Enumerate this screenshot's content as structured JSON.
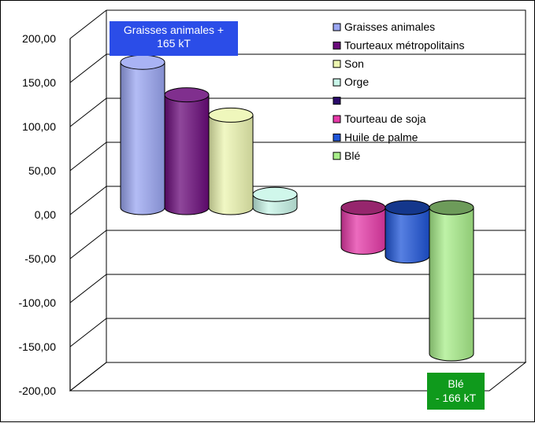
{
  "chart_data": {
    "type": "bar",
    "style": "3d-cylinder",
    "categories": [
      "Graisses animales",
      "Tourteaux métropolitains",
      "Son",
      "Orge",
      "",
      "Tourteau de soja",
      "Huile de palme",
      "Blé"
    ],
    "values": [
      165,
      128,
      105,
      15,
      0,
      -45,
      -55,
      -166
    ],
    "colors": [
      "#9aa6f2",
      "#6a0a7a",
      "#ecf5b0",
      "#c8f5e8",
      "#2a0a6a",
      "#e63aa8",
      "#1f55d8",
      "#a8ee8a"
    ],
    "ylim": [
      -200,
      200
    ],
    "yticks": [
      "200,00",
      "150,00",
      "100,00",
      "50,00",
      "0,00",
      "-50,00",
      "-100,00",
      "-150,00",
      "-200,00"
    ],
    "grid": true,
    "legend_position": "top-right",
    "annotations": [
      {
        "lines": [
          "Graisses animales  +",
          "165 kT"
        ],
        "color": "#2b4de8"
      },
      {
        "lines": [
          "Blé",
          "- 166 kT"
        ],
        "color": "#0f9a1c"
      }
    ]
  }
}
